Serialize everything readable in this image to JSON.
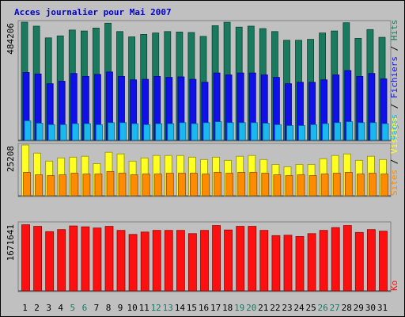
{
  "window_title": "Acces journalier pour Mai 2007",
  "colors": {
    "background": "#c0c0c0",
    "plot_bg": "#c0c0c0",
    "hits": "#1a7a5e",
    "files": "#1010e8",
    "pages": "#1ab8f0",
    "visits": "#ffff22",
    "sites": "#ff8c00",
    "ko": "#ff1010",
    "title": "#0000cc",
    "weekend_day": "#1a7a5e",
    "weekday": "#000000"
  },
  "chart_data": {
    "type": "bar",
    "title": "Acces journalier pour Mai 2007",
    "categories": [
      "1",
      "2",
      "3",
      "4",
      "5",
      "6",
      "7",
      "8",
      "9",
      "10",
      "11",
      "12",
      "13",
      "14",
      "15",
      "16",
      "17",
      "18",
      "19",
      "20",
      "21",
      "22",
      "23",
      "24",
      "25",
      "26",
      "27",
      "28",
      "29",
      "30",
      "31"
    ],
    "weekend_days": [
      "5",
      "6",
      "12",
      "13",
      "19",
      "20",
      "26",
      "27"
    ],
    "panels": [
      {
        "id": "hits-files-pages",
        "ylabel_parts": [
          "Pages",
          "Fichiers",
          "Hits"
        ],
        "ylabel_colors": [
          "#1ab8f0",
          "#1010e8",
          "#1a7a5e"
        ],
        "max_label": "484206",
        "ylim": [
          0,
          484206
        ],
        "series": [
          {
            "name": "Hits",
            "color": "#1a7a5e",
            "values": [
              484206,
              468000,
              420000,
              428000,
              452000,
              448000,
              460000,
              480000,
              446000,
              424000,
              434000,
              440000,
              446000,
              444000,
              442000,
              426000,
              470000,
              484000,
              464000,
              468000,
              458000,
              446000,
              410000,
              410000,
              414000,
              440000,
              448000,
              482000,
              418000,
              454000,
              422000
            ]
          },
          {
            "name": "Fichiers",
            "color": "#1010e8",
            "values": [
              278000,
              272000,
              232000,
              242000,
              274000,
              262000,
              270000,
              280000,
              262000,
              248000,
              250000,
              262000,
              258000,
              260000,
              250000,
              238000,
              276000,
              268000,
              276000,
              276000,
              268000,
              258000,
              232000,
              238000,
              238000,
              248000,
              268000,
              286000,
              262000,
              274000,
              252000
            ]
          },
          {
            "name": "Pages",
            "color": "#1ab8f0",
            "values": [
              80000,
              70000,
              64000,
              64000,
              68000,
              68000,
              64000,
              72000,
              72000,
              68000,
              64000,
              68000,
              68000,
              72000,
              68000,
              72000,
              76000,
              72000,
              72000,
              72000,
              70000,
              64000,
              60000,
              60000,
              64000,
              68000,
              72000,
              76000,
              72000,
              72000,
              68000
            ]
          }
        ]
      },
      {
        "id": "visites-sites",
        "ylabel_parts": [
          "Sites",
          "Visites"
        ],
        "ylabel_colors": [
          "#ff8c00",
          "#ffff22"
        ],
        "max_label": "25208",
        "ylim": [
          0,
          25208
        ],
        "series": [
          {
            "name": "Visites",
            "color": "#ffff22",
            "values": [
              25208,
              21200,
              17200,
              18800,
              19200,
              19600,
              16000,
              21600,
              20800,
              17200,
              18800,
              20000,
              20000,
              20000,
              19200,
              18000,
              19200,
              17600,
              19600,
              20000,
              18000,
              15600,
              14400,
              15600,
              15600,
              18400,
              20000,
              20800,
              17600,
              19600,
              18000
            ]
          },
          {
            "name": "Sites",
            "color": "#ff8c00",
            "values": [
              11600,
              10400,
              10000,
              10400,
              11200,
              10800,
              10800,
              12000,
              11200,
              10400,
              10800,
              10800,
              11200,
              11200,
              11200,
              10800,
              11600,
              11200,
              11600,
              11600,
              11200,
              10400,
              10000,
              10400,
              10000,
              10800,
              11200,
              11600,
              10800,
              11200,
              10800
            ]
          }
        ]
      },
      {
        "id": "ko",
        "ylabel_parts": [
          "Ko"
        ],
        "ylabel_colors": [
          "#ff1010"
        ],
        "max_label": "1671641",
        "ylim": [
          0,
          1671641
        ],
        "series": [
          {
            "name": "Ko",
            "color": "#ff1010",
            "values": [
              1640000,
              1600000,
              1470000,
              1520000,
              1610000,
              1590000,
              1560000,
              1600000,
              1500000,
              1400000,
              1460000,
              1500000,
              1500000,
              1500000,
              1420000,
              1500000,
              1620000,
              1510000,
              1600000,
              1600000,
              1500000,
              1370000,
              1380000,
              1350000,
              1420000,
              1500000,
              1570000,
              1620000,
              1450000,
              1520000,
              1480000
            ]
          }
        ]
      }
    ]
  }
}
